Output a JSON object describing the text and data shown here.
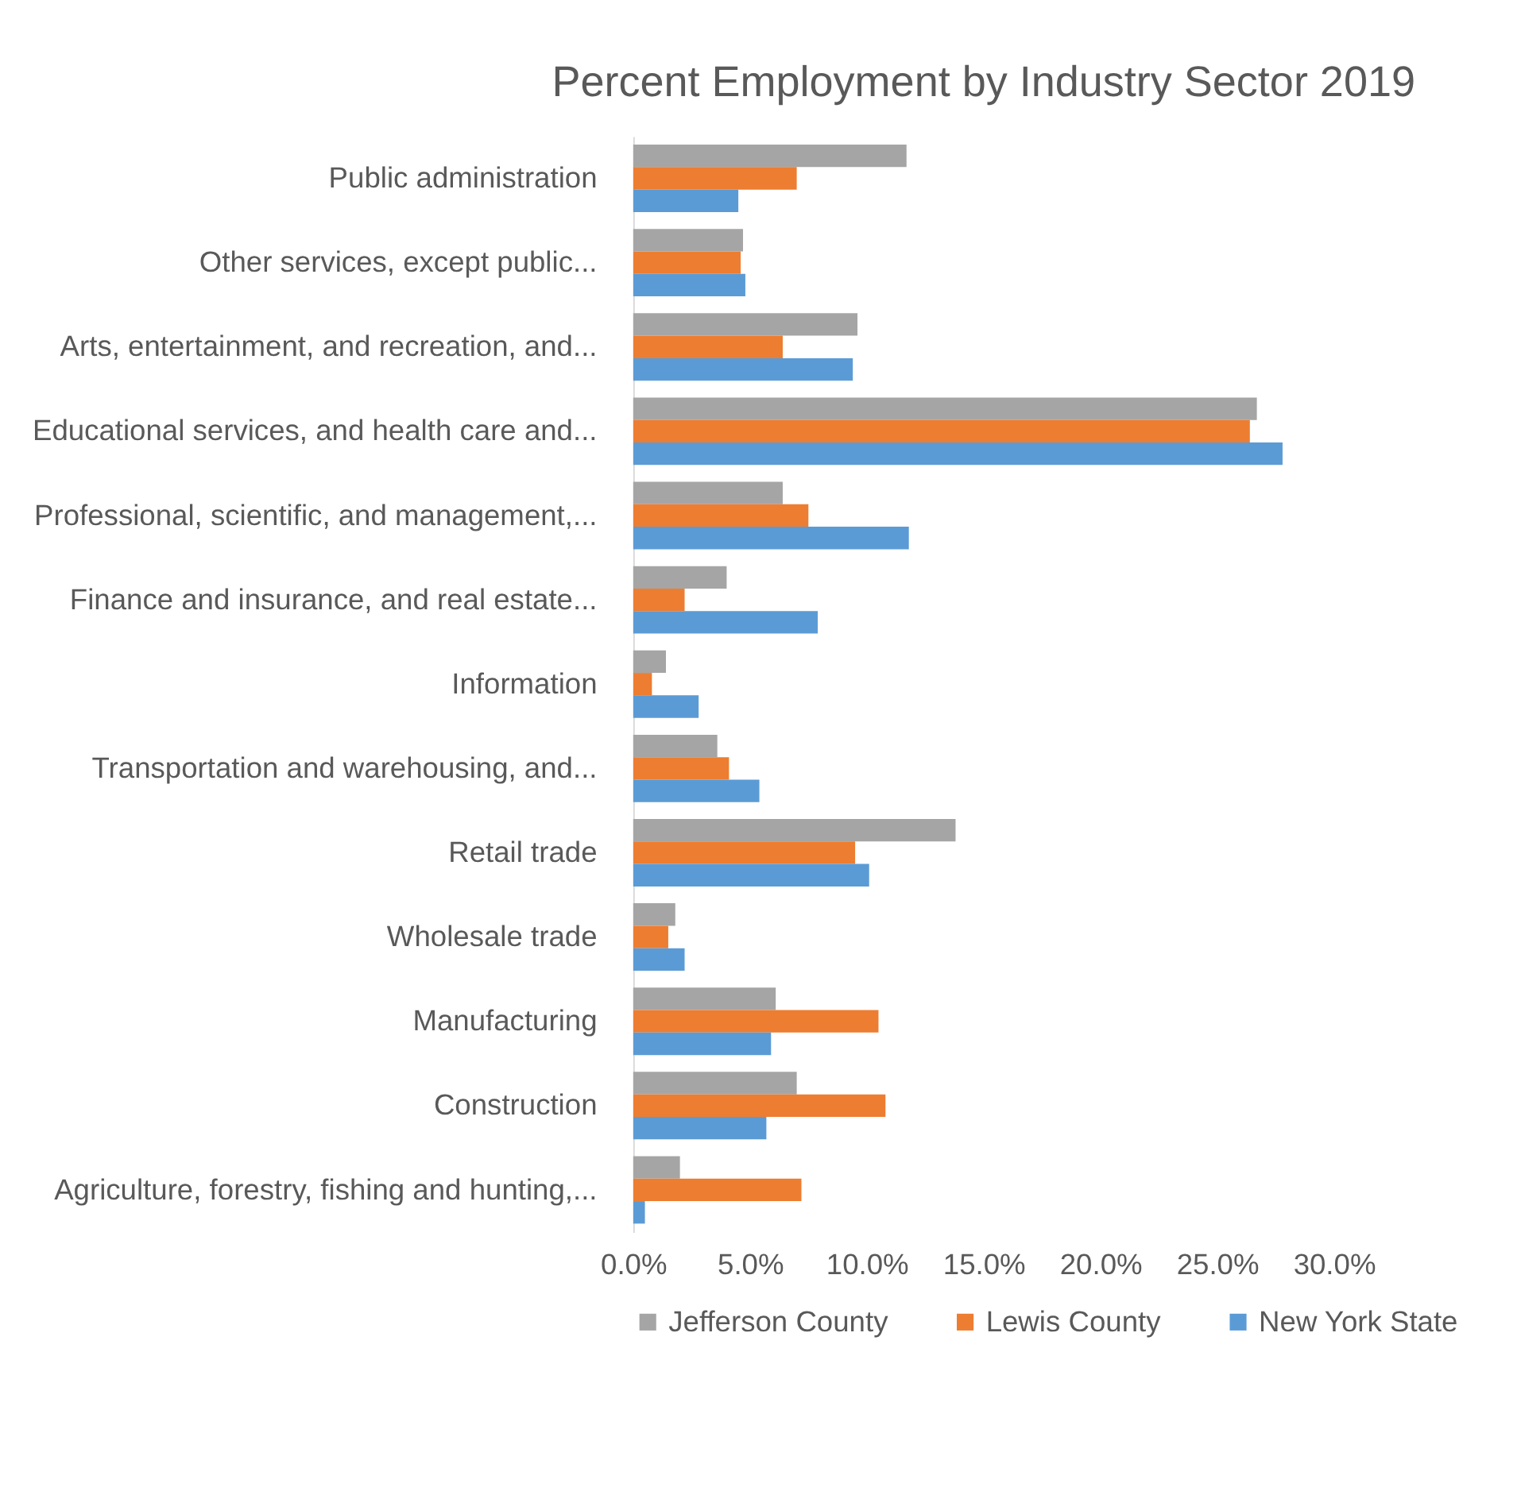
{
  "chart_data": {
    "type": "bar",
    "orientation": "horizontal",
    "title": "Percent Employment by Industry Sector 2019",
    "categories": [
      "Public administration",
      "Other services, except public...",
      "Arts, entertainment, and recreation, and...",
      "Educational services, and health care and...",
      "Professional, scientific, and management,...",
      "Finance and insurance, and real estate...",
      "Information",
      "Transportation and warehousing, and...",
      "Retail trade",
      "Wholesale trade",
      "Manufacturing",
      "Construction",
      "Agriculture, forestry, fishing and hunting,..."
    ],
    "series": [
      {
        "name": "Jefferson County",
        "color": "#a5a5a5",
        "values": [
          11.7,
          4.7,
          9.6,
          26.7,
          6.4,
          4.0,
          1.4,
          3.6,
          13.8,
          1.8,
          6.1,
          7.0,
          2.0
        ]
      },
      {
        "name": "Lewis County",
        "color": "#ed7d31",
        "values": [
          7.0,
          4.6,
          6.4,
          26.4,
          7.5,
          2.2,
          0.8,
          4.1,
          9.5,
          1.5,
          10.5,
          10.8,
          7.2
        ]
      },
      {
        "name": "New York State",
        "color": "#5b9bd5",
        "values": [
          4.5,
          4.8,
          9.4,
          27.8,
          11.8,
          7.9,
          2.8,
          5.4,
          10.1,
          2.2,
          5.9,
          5.7,
          0.5
        ]
      }
    ],
    "xlim": [
      0,
      30
    ],
    "xticks": [
      {
        "value": 0,
        "label": "0.0%"
      },
      {
        "value": 5,
        "label": "5.0%"
      },
      {
        "value": 10,
        "label": "10.0%"
      },
      {
        "value": 15,
        "label": "15.0%"
      },
      {
        "value": 20,
        "label": "20.0%"
      },
      {
        "value": 25,
        "label": "25.0%"
      },
      {
        "value": 30,
        "label": "30.0%"
      }
    ],
    "grid": false,
    "legend": "bottom"
  }
}
